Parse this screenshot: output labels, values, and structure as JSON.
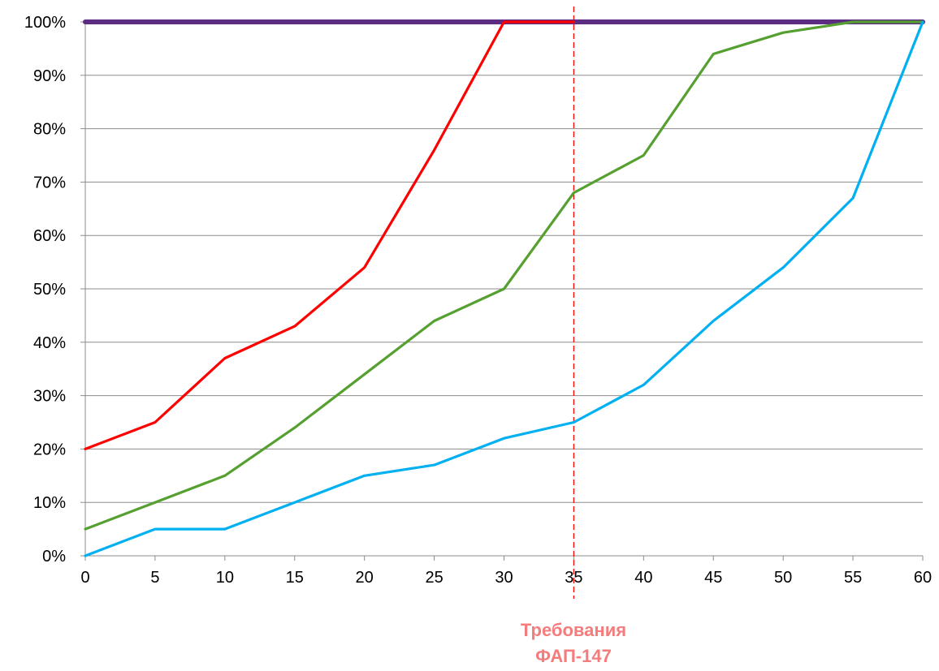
{
  "chart_data": {
    "type": "line",
    "title": "",
    "xlabel": "",
    "ylabel": "",
    "x": [
      0,
      5,
      10,
      15,
      20,
      25,
      30,
      35,
      40,
      45,
      50,
      55,
      60
    ],
    "xlim": [
      0,
      60
    ],
    "ylim": [
      0,
      100
    ],
    "x_ticks": [
      "0",
      "5",
      "10",
      "15",
      "20",
      "25",
      "30",
      "35",
      "40",
      "45",
      "50",
      "55",
      "60"
    ],
    "y_ticks": [
      "0%",
      "10%",
      "20%",
      "30%",
      "40%",
      "50%",
      "60%",
      "70%",
      "80%",
      "90%",
      "100%"
    ],
    "grid": "horizontal",
    "legend": "none",
    "series": [
      {
        "color": "#ff0000",
        "values": [
          20,
          25,
          37,
          43,
          54,
          76,
          100,
          100,
          null,
          null,
          null,
          null,
          null
        ]
      },
      {
        "color": "#55a030",
        "values": [
          5,
          10,
          15,
          24,
          34,
          44,
          50,
          68,
          75,
          94,
          98,
          100,
          100
        ]
      },
      {
        "color": "#00b0f0",
        "values": [
          0,
          5,
          5,
          10,
          15,
          17,
          22,
          25,
          32,
          44,
          54,
          67,
          100
        ]
      },
      {
        "color": "#5c2d82",
        "values": [
          100,
          100,
          100,
          100,
          100,
          100,
          100,
          100,
          100,
          100,
          100,
          100,
          100
        ]
      }
    ],
    "reference_line": {
      "x": 35,
      "color": "#ff0000",
      "label_line1": "Требования",
      "label_line2": "ФАП-147",
      "label_color": "#f47c7c"
    }
  }
}
